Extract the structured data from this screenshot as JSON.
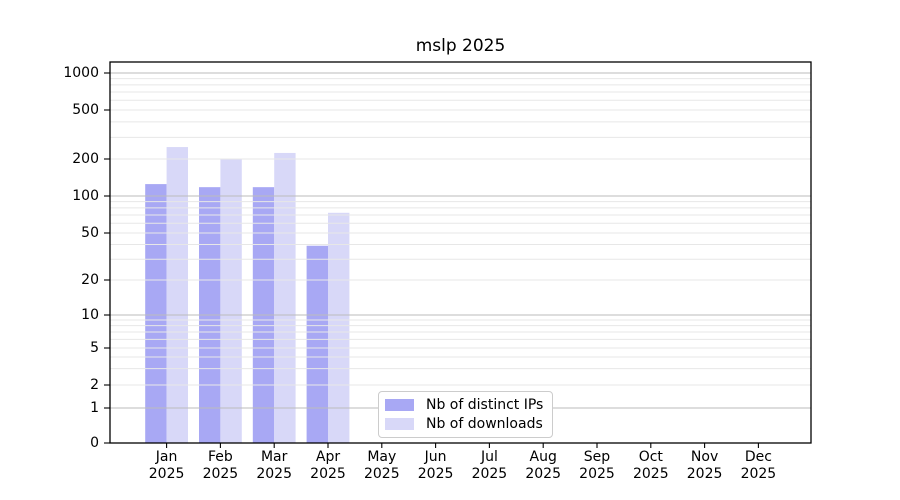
{
  "chart_data": {
    "type": "bar",
    "title": "mslp 2025",
    "categories": [
      "Jan 2025",
      "Feb 2025",
      "Mar 2025",
      "Apr 2025",
      "May 2025",
      "Jun 2025",
      "Jul 2025",
      "Aug 2025",
      "Sep 2025",
      "Oct 2025",
      "Nov 2025",
      "Dec 2025"
    ],
    "series": [
      {
        "name": "Nb of distinct IPs",
        "color": "#a8a8f4",
        "values": [
          125,
          118,
          118,
          39,
          0,
          0,
          0,
          0,
          0,
          0,
          0,
          0
        ]
      },
      {
        "name": "Nb of downloads",
        "color": "#d8d8f8",
        "values": [
          250,
          200,
          224,
          73,
          0,
          0,
          0,
          0,
          0,
          0,
          0,
          0
        ]
      }
    ],
    "yscale": "asinh-log",
    "yticks": [
      0,
      1,
      2,
      5,
      10,
      20,
      50,
      100,
      200,
      500,
      1000
    ],
    "ylim": [
      0,
      1230
    ],
    "xlabel": "",
    "ylabel": "",
    "grid": true,
    "legend_position": "lower-center-inside"
  },
  "colors": {
    "major_grid": "#bbbbbb",
    "minor_grid": "#e7e7e7",
    "axis": "#000000",
    "legend_border": "#cccccc",
    "background": "#ffffff"
  }
}
